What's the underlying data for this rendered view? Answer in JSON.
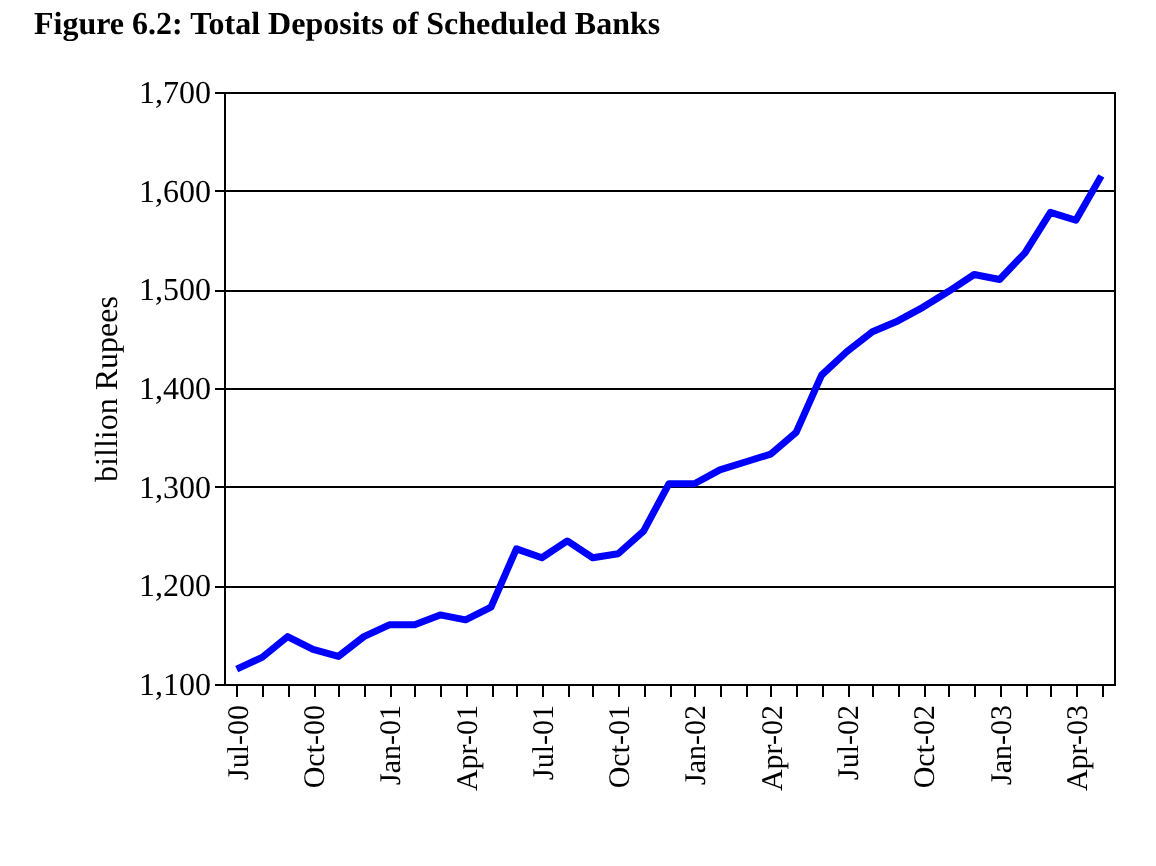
{
  "chart_data": {
    "type": "line",
    "title": "Figure 6.2: Total Deposits of Scheduled Banks",
    "ylabel": "billion Rupees",
    "categories": [
      "Jul-00",
      null,
      null,
      "Oct-00",
      null,
      null,
      "Jan-01",
      null,
      null,
      "Apr-01",
      null,
      null,
      "Jul-01",
      null,
      null,
      "Oct-01",
      null,
      null,
      "Jan-02",
      null,
      null,
      "Apr-02",
      null,
      null,
      "Jul-02",
      null,
      null,
      "Oct-02",
      null,
      null,
      "Jan-03",
      null,
      null,
      "Apr-03",
      null
    ],
    "series": [
      {
        "color": "#0000ff",
        "values": [
          1115,
          1127,
          1148,
          1135,
          1128,
          1148,
          1160,
          1160,
          1170,
          1165,
          1178,
          1237,
          1228,
          1245,
          1228,
          1232,
          1255,
          1303,
          1303,
          1317,
          1325,
          1333,
          1355,
          1413,
          1437,
          1457,
          1468,
          1482,
          1498,
          1515,
          1510,
          1537,
          1578,
          1570,
          1615
        ]
      }
    ],
    "ylim": [
      1100,
      1700
    ],
    "yticks": [
      {
        "value": 1100,
        "label": "1,100"
      },
      {
        "value": 1200,
        "label": "1,200"
      },
      {
        "value": 1300,
        "label": "1,300"
      },
      {
        "value": 1400,
        "label": "1,400"
      },
      {
        "value": 1500,
        "label": "1,500"
      },
      {
        "value": 1600,
        "label": "1,600"
      },
      {
        "value": 1700,
        "label": "1,700"
      }
    ],
    "grid": "y",
    "marker": "none",
    "line_style": "solid"
  }
}
